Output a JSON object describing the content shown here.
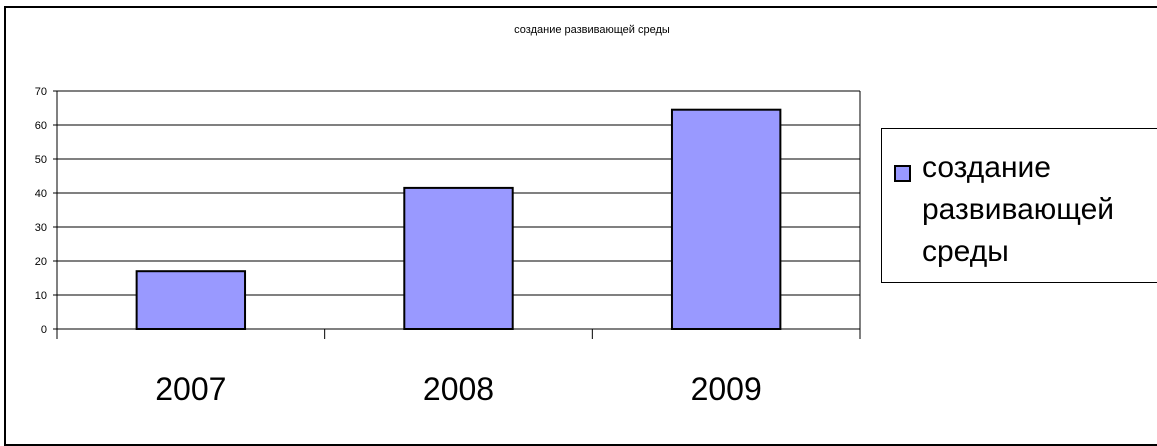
{
  "chart_data": {
    "type": "bar",
    "title": "создание развивающей среды",
    "categories": [
      "2007",
      "2008",
      "2009"
    ],
    "series": [
      {
        "name": "создание развивающей среды",
        "values": [
          17,
          41.5,
          64.5
        ],
        "color": "#9999ff"
      }
    ],
    "yticks": [
      0,
      10,
      20,
      30,
      40,
      50,
      60,
      70
    ],
    "ylim": [
      0,
      70
    ],
    "grid": true,
    "legend_position": "right",
    "xlabel": "",
    "ylabel": ""
  }
}
